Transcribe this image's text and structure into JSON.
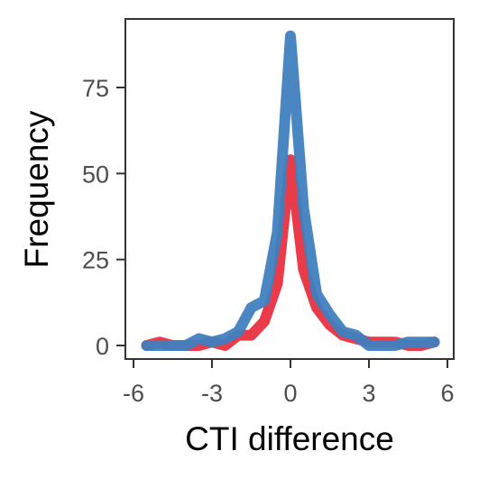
{
  "chart_data": {
    "type": "line",
    "title": "",
    "xlabel": "CTI difference",
    "ylabel": "Frequency",
    "xlim": [
      -6,
      6
    ],
    "ylim": [
      -3,
      95
    ],
    "x_ticks": [
      -6,
      -3,
      0,
      3,
      6
    ],
    "y_ticks": [
      0,
      25,
      50,
      75
    ],
    "x_tick_labels": [
      "-6",
      "-3",
      "0",
      "3",
      "6"
    ],
    "y_tick_labels": [
      "0",
      "25",
      "50",
      "75"
    ],
    "grid": false,
    "legend": "none",
    "series": [
      {
        "color": "#e8303f",
        "x": [
          -5.5,
          -5,
          -4.5,
          -4,
          -3.5,
          -3,
          -2.5,
          -2,
          -1.5,
          -1,
          -0.5,
          0,
          0.5,
          1,
          1.5,
          2,
          2.5,
          3,
          3.5,
          4,
          4.5,
          5,
          5.5
        ],
        "y": [
          0,
          1,
          0,
          0,
          0,
          1,
          0,
          3,
          3,
          7,
          18,
          54,
          22,
          11,
          6,
          3,
          2,
          1,
          1,
          1,
          0,
          0,
          1
        ]
      },
      {
        "color": "#3f7fbf",
        "x": [
          -5.5,
          -5,
          -4.5,
          -4,
          -3.5,
          -3,
          -2.5,
          -2,
          -1.5,
          -1,
          -0.5,
          0,
          0.5,
          1,
          1.5,
          2,
          2.5,
          3,
          3.5,
          4,
          4.5,
          5,
          5.5
        ],
        "y": [
          0,
          0,
          0,
          0,
          2,
          1,
          2,
          4,
          11,
          13,
          33,
          90,
          40,
          15,
          9,
          4,
          3,
          0,
          0,
          0,
          1,
          1,
          1
        ]
      }
    ]
  }
}
